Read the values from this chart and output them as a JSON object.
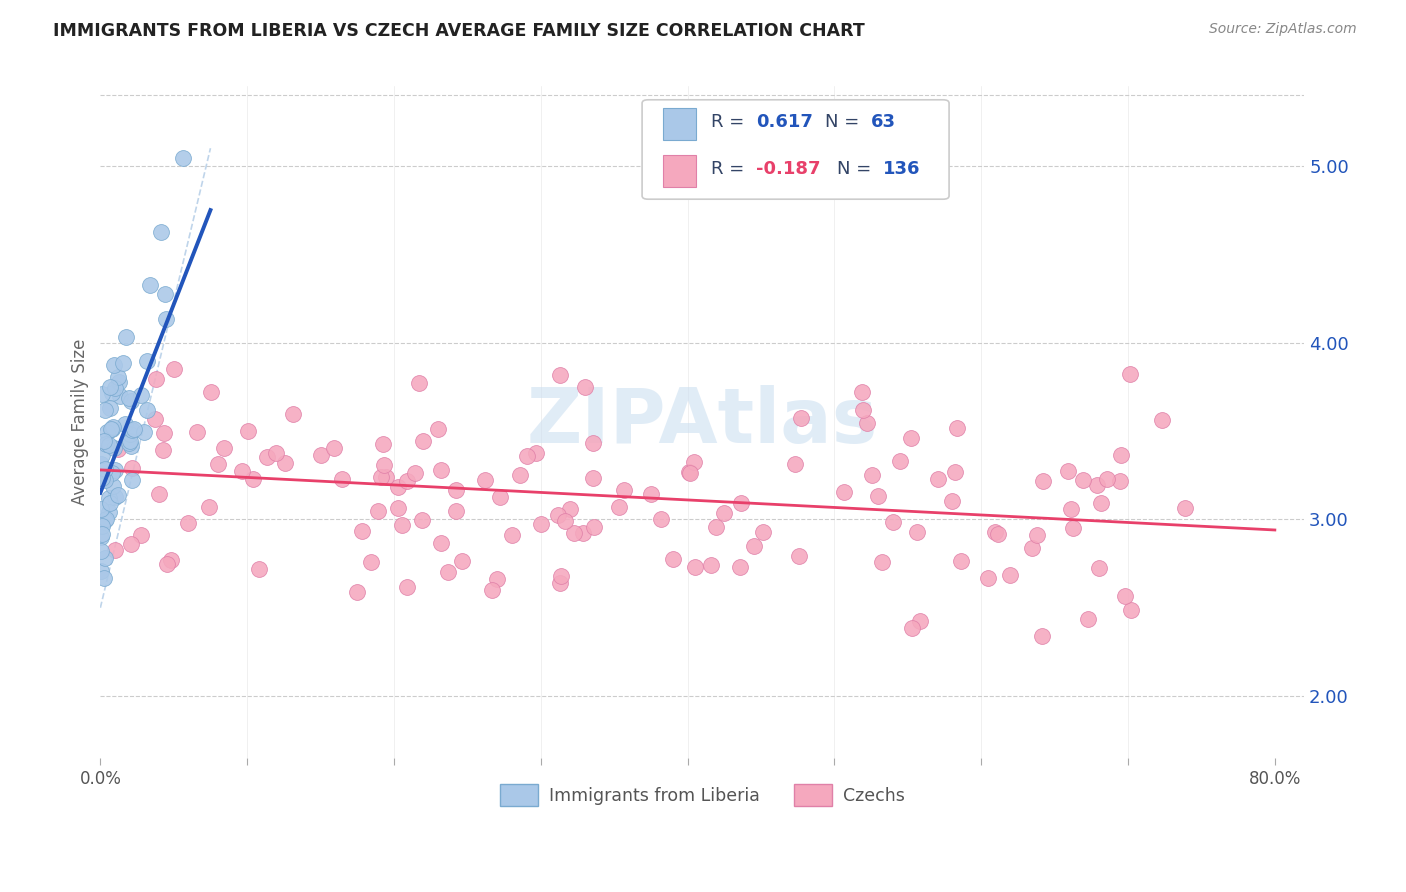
{
  "title": "IMMIGRANTS FROM LIBERIA VS CZECH AVERAGE FAMILY SIZE CORRELATION CHART",
  "source": "Source: ZipAtlas.com",
  "ylabel": "Average Family Size",
  "right_yticks": [
    2.0,
    3.0,
    4.0,
    5.0
  ],
  "background_color": "#ffffff",
  "liberia_color": "#aac8e8",
  "liberia_edge_color": "#7aaad0",
  "czech_color": "#f5a8be",
  "czech_edge_color": "#e080a8",
  "liberia_line_color": "#2255bb",
  "czech_line_color": "#e8406a",
  "dashed_line_color": "#b8d0e8",
  "grid_color": "#cccccc",
  "watermark_text": "ZIPAtlas",
  "watermark_color": "#c8ddf0",
  "legend_label1": "Immigrants from Liberia",
  "legend_label2": "Czechs",
  "legend_r1_val": "0.617",
  "legend_n1_val": "63",
  "legend_r2_val": "-0.187",
  "legend_n2_val": "136",
  "legend_text_color": "#334466",
  "legend_val_color": "#2255bb",
  "legend_neg_color": "#e8406a",
  "title_color": "#222222",
  "source_color": "#888888",
  "ylabel_color": "#666666",
  "tick_color": "#2255bb",
  "xlim": [
    0.0,
    0.82
  ],
  "ylim": [
    1.65,
    5.45
  ],
  "liberia_line_x0": 0.0,
  "liberia_line_y0": 3.15,
  "liberia_line_x1": 0.075,
  "liberia_line_y1": 4.75,
  "czech_line_x0": 0.0,
  "czech_line_x1": 0.8,
  "czech_line_y0": 3.28,
  "czech_line_y1": 2.94,
  "dashed_line_x0": 0.0,
  "dashed_line_y0": 2.5,
  "dashed_line_x1": 0.075,
  "dashed_line_y1": 5.1
}
